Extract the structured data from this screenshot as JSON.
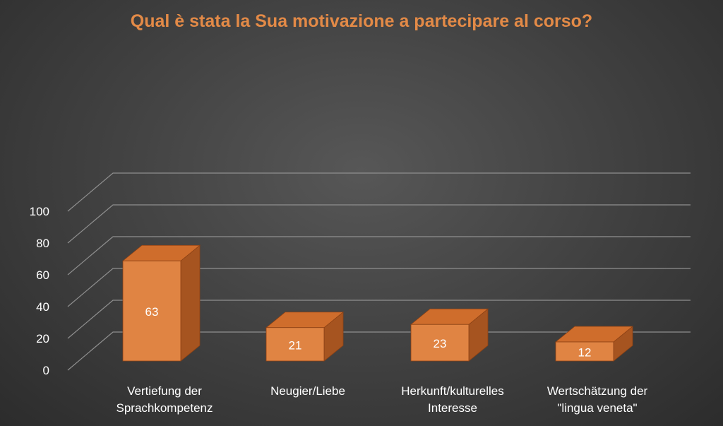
{
  "chart_data": {
    "type": "bar",
    "title": "Qual è stata la Sua motivazione a partecipare al corso?",
    "categories": [
      [
        "Vertiefung der",
        "Sprachkompetenz"
      ],
      [
        "Neugier/Liebe"
      ],
      [
        "Herkunft/kulturelles",
        "Interesse"
      ],
      [
        "Wertschätzung der",
        "\"lingua veneta\""
      ]
    ],
    "values": [
      63,
      21,
      23,
      12
    ],
    "data_labels": [
      "63",
      "21",
      "23",
      "12"
    ],
    "y_ticks": [
      "0",
      "20",
      "40",
      "60",
      "80",
      "100"
    ],
    "ylim": [
      0,
      100
    ],
    "grid": true,
    "legend": "none",
    "colors": {
      "bar_front": "#e08443",
      "bar_top": "#cf6d2c",
      "bar_side": "#a65420",
      "bar_edge": "#8a4014",
      "title": "#e38a47",
      "text": "#ffffff",
      "grid": "#8f8f8f"
    }
  }
}
